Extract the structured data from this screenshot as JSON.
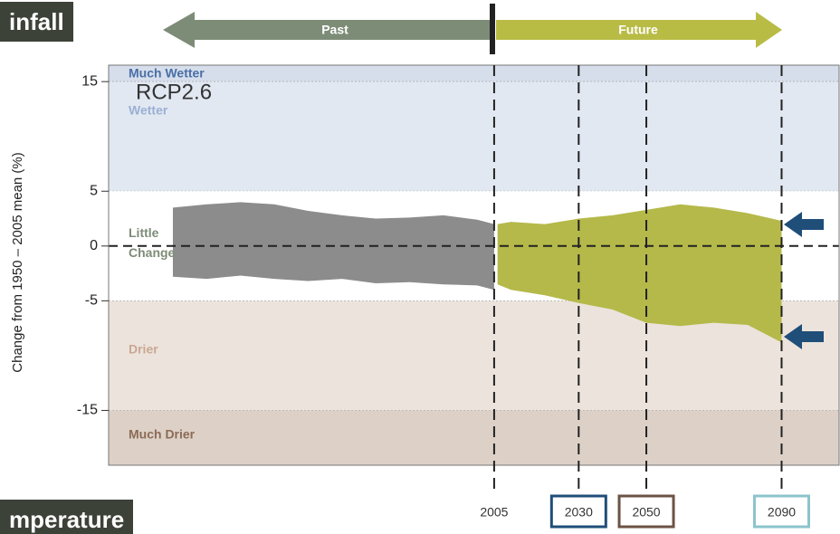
{
  "header": {
    "top": "infall",
    "bottom": "mperature"
  },
  "chart_data": {
    "type": "band",
    "title": "RCP2.6",
    "ylabel": "Change from 1950 – 2005 mean (%)",
    "past_label": "Past",
    "future_label": "Future",
    "xlim": [
      1891,
      2107
    ],
    "ylim": [
      -20,
      16.5
    ],
    "yticks": [
      15,
      5,
      0,
      -5,
      -15
    ],
    "xticks": [
      2005,
      2030,
      2050,
      2090
    ],
    "xtick_box_colors": [
      null,
      "#1f4e79",
      "#6b5344",
      "#8cc4cc"
    ],
    "reference_line": 0,
    "regions": [
      {
        "label": "Much Wetter",
        "range": [
          15,
          16.5
        ],
        "color": "#d6deec",
        "text_color": "#4a6fa5"
      },
      {
        "label": "Wetter",
        "range": [
          5,
          15
        ],
        "color": "#e2e8f2",
        "text_color": "#9ab0d4"
      },
      {
        "label": "Little Change",
        "range": [
          -5,
          5
        ],
        "color": "#ffffff",
        "text_color": "#7d8c77"
      },
      {
        "label": "Drier",
        "range": [
          -15,
          -5
        ],
        "color": "#ece3dc",
        "text_color": "#c9a894"
      },
      {
        "label": "Much Drier",
        "range": [
          -20,
          -15
        ],
        "color": "#ddd1c7",
        "text_color": "#8b6b55"
      }
    ],
    "series": [
      {
        "name": "Past",
        "color": "#8c8c8c",
        "x": [
          1910,
          1920,
          1930,
          1940,
          1950,
          1960,
          1970,
          1980,
          1990,
          2000,
          2005
        ],
        "upper": [
          3.5,
          3.8,
          4.0,
          3.8,
          3.2,
          2.8,
          2.5,
          2.6,
          2.8,
          2.4,
          2.0
        ],
        "lower": [
          -2.8,
          -3.0,
          -2.7,
          -3.0,
          -3.2,
          -3.0,
          -3.4,
          -3.3,
          -3.5,
          -3.6,
          -4.0
        ]
      },
      {
        "name": "Future",
        "color": "#b5b94a",
        "x": [
          2006,
          2010,
          2020,
          2030,
          2040,
          2050,
          2060,
          2070,
          2080,
          2090
        ],
        "upper": [
          2.0,
          2.2,
          2.0,
          2.5,
          2.8,
          3.3,
          3.8,
          3.5,
          3.0,
          2.3
        ],
        "lower": [
          -3.5,
          -4.0,
          -4.5,
          -5.2,
          -5.8,
          -7.0,
          -7.3,
          -7.0,
          -7.2,
          -8.8
        ]
      }
    ]
  }
}
